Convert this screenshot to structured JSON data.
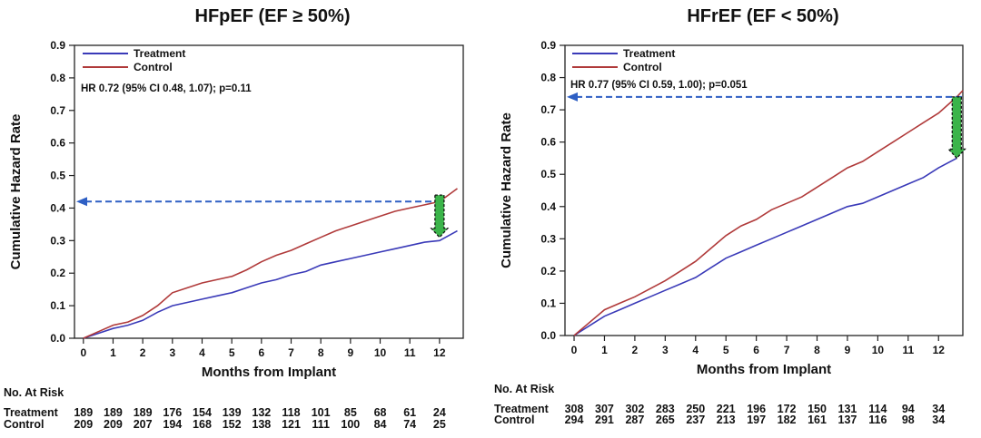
{
  "chart_data": [
    {
      "type": "line",
      "title": "HFpEF (EF ≥ 50%)",
      "xlabel": "Months from Implant",
      "ylabel": "Cumulative Hazard Rate",
      "xlim": [
        -0.3,
        12.8
      ],
      "ylim": [
        0,
        0.9
      ],
      "xticks": [
        0,
        1,
        2,
        3,
        4,
        5,
        6,
        7,
        8,
        9,
        10,
        11,
        12
      ],
      "yticks": [
        "0.0",
        "0.1",
        "0.2",
        "0.3",
        "0.4",
        "0.5",
        "0.6",
        "0.7",
        "0.8",
        "0.9"
      ],
      "grid": false,
      "legend_position": "top-left",
      "annotation": "HR 0.72 (95% CI 0.48, 1.07); p=0.11",
      "reference_line_y": 0.42,
      "arrow": {
        "x": 12.0,
        "from": 0.44,
        "to": 0.31
      },
      "series": [
        {
          "name": "Treatment",
          "color": "#3a3ab8",
          "x": [
            0,
            0.5,
            1,
            1.5,
            2,
            2.5,
            3,
            3.5,
            4,
            4.5,
            5,
            5.5,
            6,
            6.5,
            7,
            7.5,
            8,
            8.5,
            9,
            9.5,
            10,
            10.5,
            11,
            11.5,
            12,
            12.6
          ],
          "y": [
            0,
            0.015,
            0.03,
            0.04,
            0.055,
            0.08,
            0.1,
            0.11,
            0.12,
            0.13,
            0.14,
            0.155,
            0.17,
            0.18,
            0.195,
            0.205,
            0.225,
            0.235,
            0.245,
            0.255,
            0.265,
            0.275,
            0.285,
            0.295,
            0.3,
            0.33
          ]
        },
        {
          "name": "Control",
          "color": "#b03a3a",
          "x": [
            0,
            0.5,
            1,
            1.5,
            2,
            2.5,
            3,
            3.5,
            4,
            4.5,
            5,
            5.5,
            6,
            6.5,
            7,
            7.5,
            8,
            8.5,
            9,
            9.5,
            10,
            10.5,
            11,
            11.5,
            12,
            12.6
          ],
          "y": [
            0,
            0.02,
            0.04,
            0.05,
            0.07,
            0.1,
            0.14,
            0.155,
            0.17,
            0.18,
            0.19,
            0.21,
            0.235,
            0.255,
            0.27,
            0.29,
            0.31,
            0.33,
            0.345,
            0.36,
            0.375,
            0.39,
            0.4,
            0.41,
            0.42,
            0.46
          ]
        }
      ],
      "at_risk": {
        "heading": "No. At Risk",
        "rows": [
          {
            "label": "Treatment",
            "values": [
              "189",
              "189",
              "189",
              "176",
              "154",
              "139",
              "132",
              "118",
              "101",
              "85",
              "68",
              "61",
              "24"
            ]
          },
          {
            "label": "Control",
            "values": [
              "209",
              "209",
              "207",
              "194",
              "168",
              "152",
              "138",
              "121",
              "111",
              "100",
              "84",
              "74",
              "25"
            ]
          }
        ]
      }
    },
    {
      "type": "line",
      "title": "HFrEF (EF < 50%)",
      "xlabel": "Months from Implant",
      "ylabel": "Cumulative Hazard Rate",
      "xlim": [
        -0.3,
        12.8
      ],
      "ylim": [
        0,
        0.9
      ],
      "xticks": [
        0,
        1,
        2,
        3,
        4,
        5,
        6,
        7,
        8,
        9,
        10,
        11,
        12
      ],
      "yticks": [
        "0.0",
        "0.1",
        "0.2",
        "0.3",
        "0.4",
        "0.5",
        "0.6",
        "0.7",
        "0.8",
        "0.9"
      ],
      "grid": false,
      "legend_position": "top-left",
      "annotation": "HR 0.77 (95% CI 0.59, 1.00); p=0.051",
      "reference_line_y": 0.74,
      "arrow": {
        "x": 12.6,
        "from": 0.74,
        "to": 0.55
      },
      "series": [
        {
          "name": "Treatment",
          "color": "#3a3ab8",
          "x": [
            0,
            0.5,
            1,
            1.5,
            2,
            2.5,
            3,
            3.5,
            4,
            4.5,
            5,
            5.5,
            6,
            6.5,
            7,
            7.5,
            8,
            8.5,
            9,
            9.5,
            10,
            10.5,
            11,
            11.5,
            12,
            12.6
          ],
          "y": [
            0,
            0.03,
            0.06,
            0.08,
            0.1,
            0.12,
            0.14,
            0.16,
            0.18,
            0.21,
            0.24,
            0.26,
            0.28,
            0.3,
            0.32,
            0.34,
            0.36,
            0.38,
            0.4,
            0.41,
            0.43,
            0.45,
            0.47,
            0.49,
            0.52,
            0.55
          ]
        },
        {
          "name": "Control",
          "color": "#b03a3a",
          "x": [
            0,
            0.5,
            1,
            1.5,
            2,
            2.5,
            3,
            3.5,
            4,
            4.5,
            5,
            5.5,
            6,
            6.5,
            7,
            7.5,
            8,
            8.5,
            9,
            9.5,
            10,
            10.5,
            11,
            11.5,
            12,
            12.6,
            12.8
          ],
          "y": [
            0,
            0.04,
            0.08,
            0.1,
            0.12,
            0.145,
            0.17,
            0.2,
            0.23,
            0.27,
            0.31,
            0.34,
            0.36,
            0.39,
            0.41,
            0.43,
            0.46,
            0.49,
            0.52,
            0.54,
            0.57,
            0.6,
            0.63,
            0.66,
            0.69,
            0.74,
            0.76
          ]
        }
      ],
      "at_risk": {
        "heading": "No. At Risk",
        "rows": [
          {
            "label": "Treatment",
            "values": [
              "308",
              "307",
              "302",
              "283",
              "250",
              "221",
              "196",
              "172",
              "150",
              "131",
              "114",
              "94",
              "34"
            ]
          },
          {
            "label": "Control",
            "values": [
              "294",
              "291",
              "287",
              "265",
              "237",
              "213",
              "197",
              "182",
              "161",
              "137",
              "116",
              "98",
              "34"
            ]
          }
        ]
      }
    }
  ]
}
